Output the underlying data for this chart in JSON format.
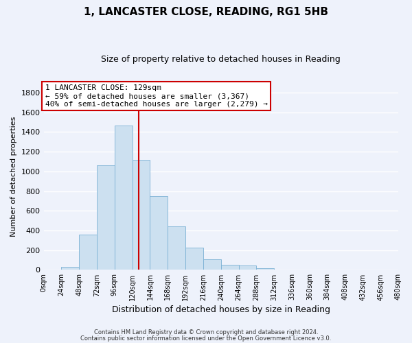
{
  "title": "1, LANCASTER CLOSE, READING, RG1 5HB",
  "subtitle": "Size of property relative to detached houses in Reading",
  "xlabel": "Distribution of detached houses by size in Reading",
  "ylabel": "Number of detached properties",
  "bar_color": "#cce0f0",
  "bar_edge_color": "#7ab0d4",
  "bins": [
    0,
    24,
    48,
    72,
    96,
    120,
    144,
    168,
    192,
    216,
    240,
    264,
    288,
    312,
    336,
    360,
    384,
    408,
    432,
    456,
    480
  ],
  "counts": [
    5,
    30,
    355,
    1060,
    1465,
    1120,
    750,
    440,
    228,
    110,
    55,
    48,
    20,
    5,
    2,
    1,
    0,
    0,
    0,
    0
  ],
  "x_labels": [
    "0sqm",
    "24sqm",
    "48sqm",
    "72sqm",
    "96sqm",
    "120sqm",
    "144sqm",
    "168sqm",
    "192sqm",
    "216sqm",
    "240sqm",
    "264sqm",
    "288sqm",
    "312sqm",
    "336sqm",
    "360sqm",
    "384sqm",
    "408sqm",
    "432sqm",
    "456sqm",
    "480sqm"
  ],
  "ylim": [
    0,
    1900
  ],
  "yticks": [
    0,
    200,
    400,
    600,
    800,
    1000,
    1200,
    1400,
    1600,
    1800
  ],
  "vline_x": 129,
  "vline_color": "#cc0000",
  "box_text_line1": "1 LANCASTER CLOSE: 129sqm",
  "box_text_line2": "← 59% of detached houses are smaller (3,367)",
  "box_text_line3": "40% of semi-detached houses are larger (2,279) →",
  "box_color": "#ffffff",
  "box_edge_color": "#cc0000",
  "footer1": "Contains HM Land Registry data © Crown copyright and database right 2024.",
  "footer2": "Contains public sector information licensed under the Open Government Licence v3.0.",
  "background_color": "#eef2fb",
  "grid_color": "#ffffff"
}
